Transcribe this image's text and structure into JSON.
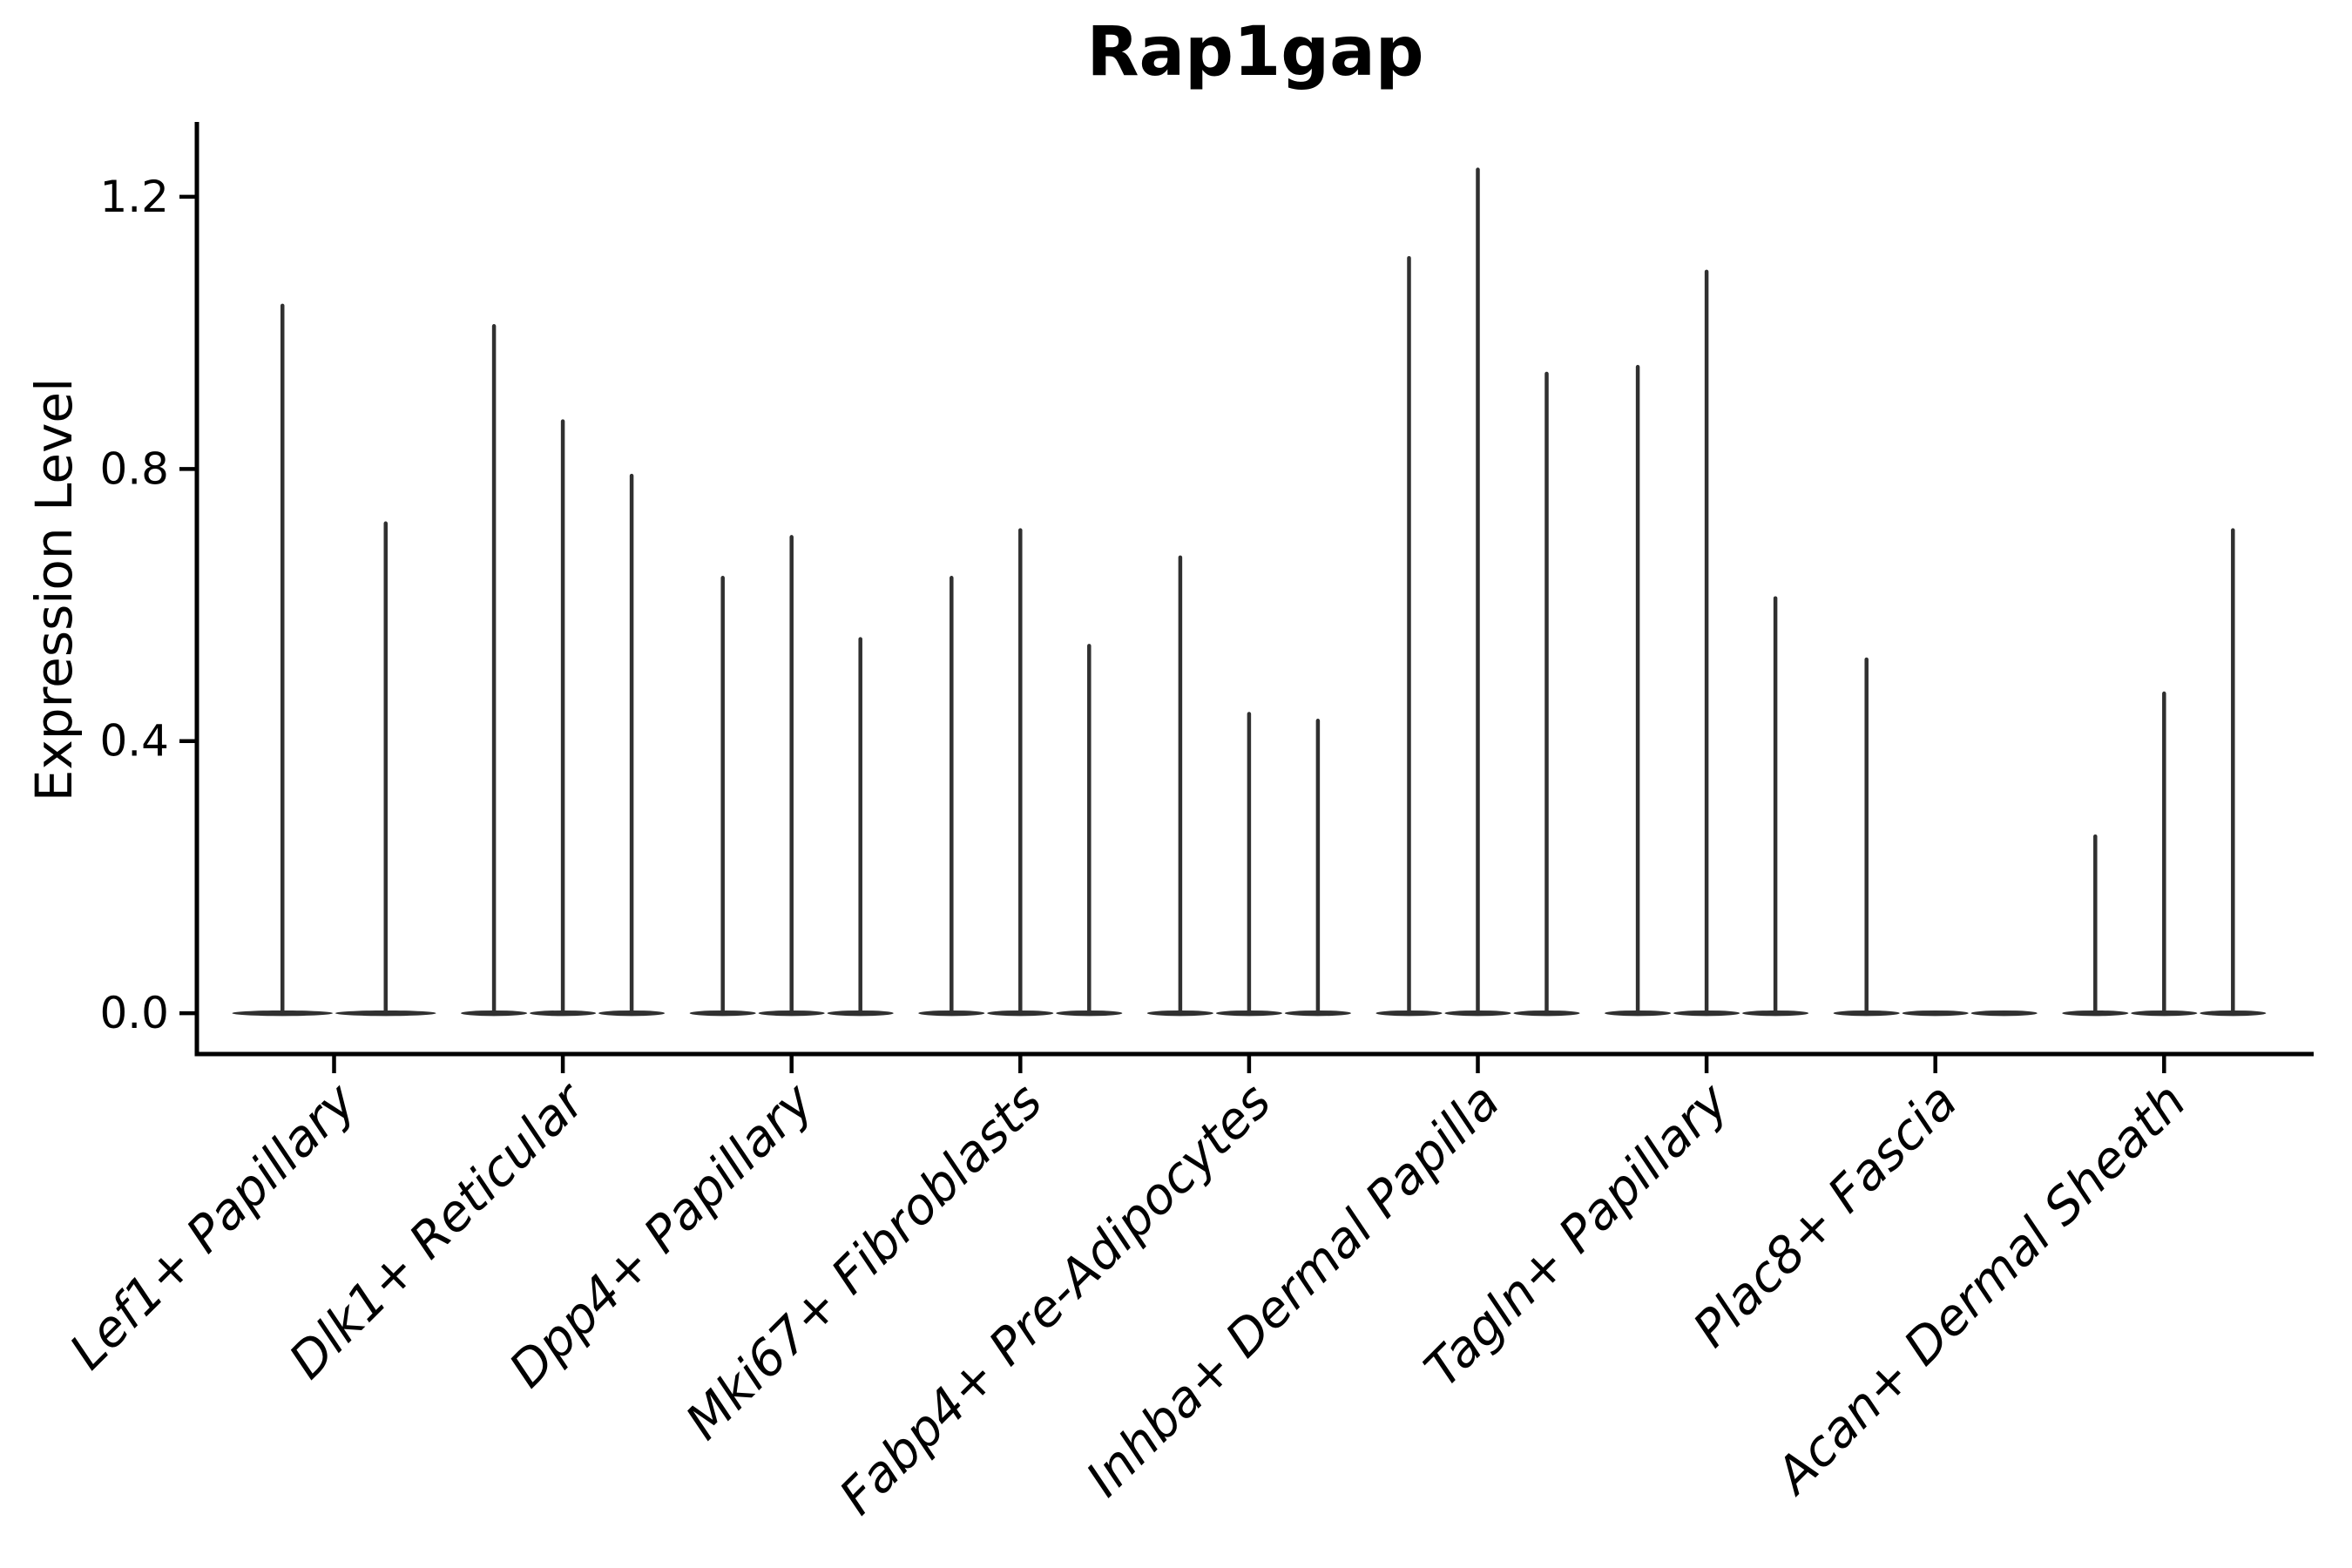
{
  "chart_data": {
    "type": "violin",
    "title": "Rap1gap",
    "ylabel": "Expression Level",
    "xlabel": "",
    "grid": false,
    "legend": "none",
    "ylim": [
      -0.06,
      1.31
    ],
    "yticks": [
      0.0,
      0.4,
      0.8,
      1.2
    ],
    "ytick_labels": [
      "0.0",
      "0.4",
      "0.8",
      "1.2"
    ],
    "categories": [
      "Lef1+ Papillary",
      "Dlk1+ Reticular",
      "Dpp4+ Papillary",
      "Mki67+ Fibroblasts",
      "Fabp4+ Pre-Adipocytes",
      "Inhba+ Dermal Papilla",
      "Tagln+ Papillary",
      "Plac8+ Fascia",
      "Acan+ Dermal Sheath"
    ],
    "groups": [
      {
        "label": "Lef1+ Papillary",
        "violin_max": [
          1.04,
          0.72
        ]
      },
      {
        "label": "Dlk1+ Reticular",
        "violin_max": [
          1.01,
          0.87,
          0.79
        ]
      },
      {
        "label": "Dpp4+ Papillary",
        "violin_max": [
          0.64,
          0.7,
          0.55
        ]
      },
      {
        "label": "Mki67+ Fibroblasts",
        "violin_max": [
          0.64,
          0.71,
          0.54
        ]
      },
      {
        "label": "Fabp4+ Pre-Adipocytes",
        "violin_max": [
          0.67,
          0.44,
          0.43
        ]
      },
      {
        "label": "Inhba+ Dermal Papilla",
        "violin_max": [
          1.11,
          1.24,
          0.94
        ]
      },
      {
        "label": "Tagln+ Papillary",
        "violin_max": [
          0.95,
          1.09,
          0.61
        ]
      },
      {
        "label": "Plac8+ Fascia",
        "violin_max": [
          0.52,
          0.0,
          0.0
        ]
      },
      {
        "label": "Acan+ Dermal Sheath",
        "violin_max": [
          0.26,
          0.47,
          0.71
        ]
      }
    ],
    "colors": {
      "violin": "#303030",
      "axis": "#000000",
      "text": "#000000",
      "background": "#ffffff"
    }
  }
}
